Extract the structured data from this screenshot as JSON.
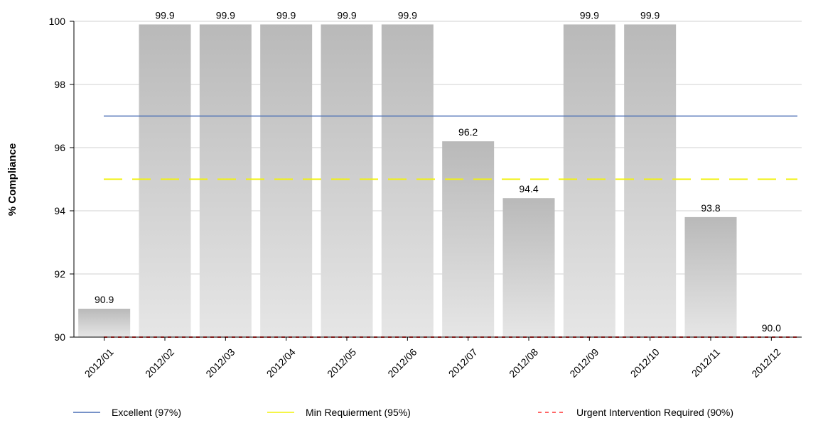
{
  "chart_data": {
    "type": "bar",
    "categories": [
      "2012/01",
      "2012/02",
      "2012/03",
      "2012/04",
      "2012/05",
      "2012/06",
      "2012/07",
      "2012/08",
      "2012/09",
      "2012/10",
      "2012/11",
      "2012/12"
    ],
    "values": [
      90.9,
      99.9,
      99.9,
      99.9,
      99.9,
      99.9,
      96.2,
      94.4,
      99.9,
      99.9,
      93.8,
      90.0
    ],
    "data_labels": [
      "90.9",
      "99.9",
      "99.9",
      "99.9",
      "99.9",
      "99.9",
      "96.2",
      "94.4",
      "99.9",
      "99.9",
      "93.8",
      "90.0"
    ],
    "ylabel": "% Compliance",
    "xlabel": "",
    "ylim": [
      90,
      100
    ],
    "yticks": [
      90,
      92,
      94,
      96,
      98,
      100
    ],
    "grid": true,
    "legend_position": "bottom",
    "bar_color": "#bdbdbd",
    "reference_lines": [
      {
        "name": "Excellent (97%)",
        "value": 97,
        "color": "#4a6fb5",
        "style": "solid"
      },
      {
        "name": "Min Requierment (95%)",
        "value": 95,
        "color": "#f2f20a",
        "style": "dashed"
      },
      {
        "name": "Urgent Intervention Required (90%)",
        "value": 90,
        "color": "#ff3333",
        "style": "dotted"
      }
    ]
  }
}
